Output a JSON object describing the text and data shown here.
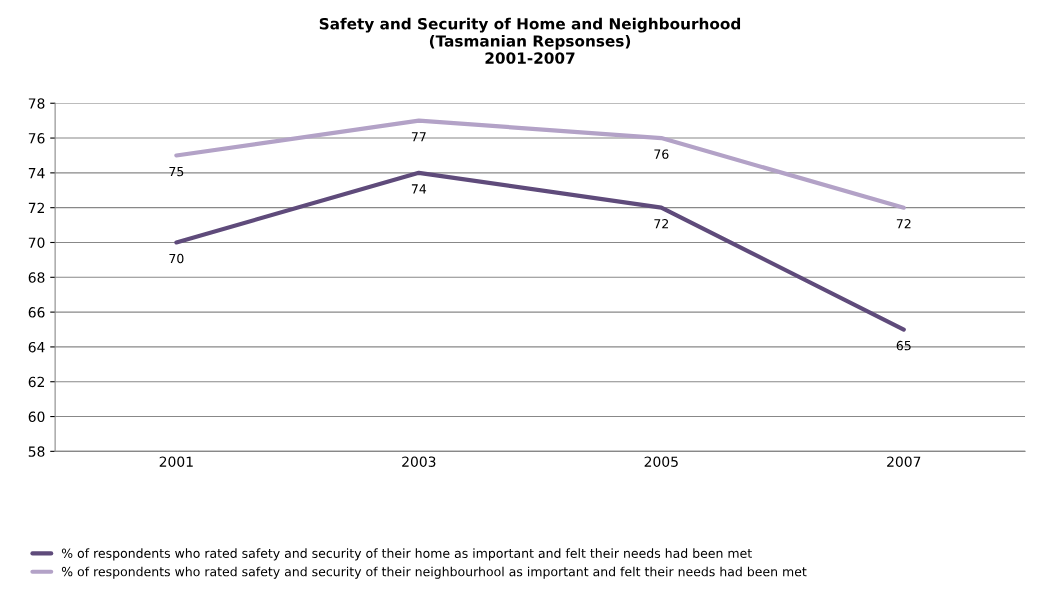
{
  "chart_data": {
    "type": "line",
    "title": "Safety and Security of Home and Neighbourhood\n(Tasmanian Repsonses)\n2001-2007",
    "categories": [
      "2001",
      "2003",
      "2005",
      "2007"
    ],
    "series": [
      {
        "name": "% of respondents who rated safety and security of their home as important and felt their needs had been met",
        "color": "#5f4b7b",
        "values": [
          70,
          74,
          72,
          65
        ]
      },
      {
        "name": "% of respondents who rated safety and security of their neighbourhool as important and felt their needs had been met",
        "color": "#b3a2c7",
        "values": [
          75,
          77,
          76,
          72
        ]
      }
    ],
    "ylim": [
      58,
      78
    ],
    "yticks": [
      58,
      60,
      62,
      64,
      66,
      68,
      70,
      72,
      74,
      76,
      78
    ],
    "grid": "y",
    "legend": "bottom",
    "marker": "none",
    "line_style": "solid",
    "data_labels": true
  }
}
